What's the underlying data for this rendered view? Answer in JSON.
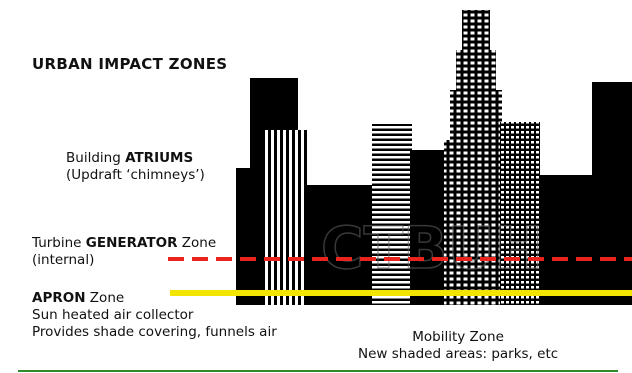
{
  "title": "URBAN IMPACT ZONES",
  "atriums": {
    "line1_prefix": "Building ",
    "line1_bold": "ATRIUMS",
    "line2": "(Updraft ‘chimneys’)"
  },
  "generator": {
    "line1_prefix": "Turbine ",
    "line1_bold": "GENERATOR",
    "line1_suffix": " Zone",
    "line2": "(internal)"
  },
  "apron": {
    "line1_bold": "APRON",
    "line1_suffix": " Zone",
    "line2": "Sun heated air collector",
    "line3": "Provides shade covering, funnels air"
  },
  "mobility": {
    "line1": "Mobility Zone",
    "line2": "New shaded areas: parks, etc"
  },
  "watermark": "CTBUH",
  "colors": {
    "generator_line": "#e8241c",
    "apron_line": "#f2e600",
    "rule": "#2e8b2e",
    "building": "#000000"
  }
}
